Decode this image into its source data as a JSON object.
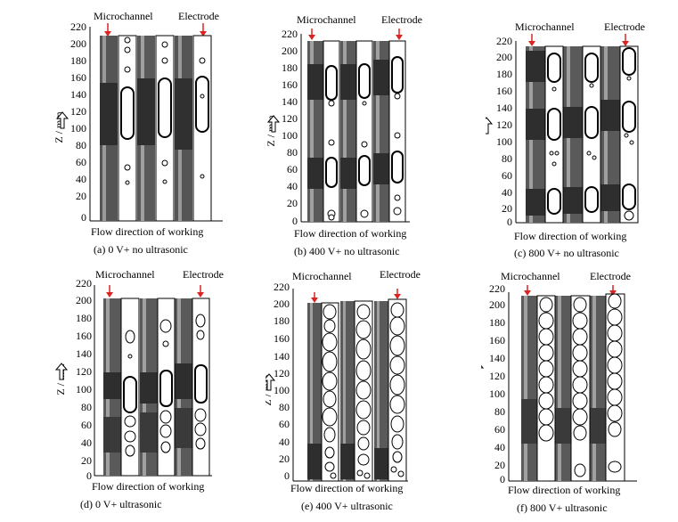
{
  "figure": {
    "top_label": "Microchannel",
    "electrode_label": "Electrode",
    "axis_label": "Z / mm",
    "bottom_label": "Flow direction of working",
    "y_ticks": [
      "220",
      "200",
      "180",
      "160",
      "140",
      "120",
      "100",
      "80",
      "60",
      "40",
      "20",
      "0"
    ]
  },
  "panels": [
    {
      "id": "a",
      "caption": "(a) 0 V+ no ultrasonic"
    },
    {
      "id": "b",
      "caption": "(b) 400 V+ no ultrasonic"
    },
    {
      "id": "c",
      "caption": "(c) 800 V+ no ultrasonic"
    },
    {
      "id": "d",
      "caption": "(d) 0 V+ ultrasonic"
    },
    {
      "id": "e",
      "caption": "(e) 400 V+ ultrasonic"
    },
    {
      "id": "f",
      "caption": "(f) 800 V+ ultrasonic"
    }
  ]
}
